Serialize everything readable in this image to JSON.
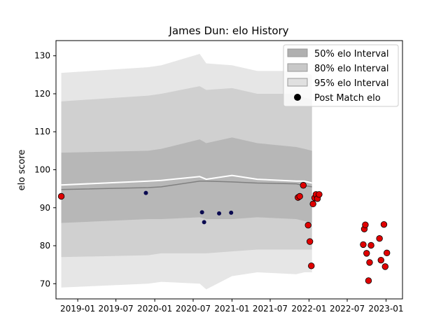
{
  "chart_data": {
    "type": "scatter",
    "title": "James Dun: elo History",
    "xlabel": "",
    "ylabel": "elo score",
    "xlim": [
      "2018-09-20",
      "2023-03-20"
    ],
    "ylim": [
      66,
      134
    ],
    "x_ticks": [
      "2019-01",
      "2019-07",
      "2020-01",
      "2020-07",
      "2021-01",
      "2021-07",
      "2022-01",
      "2022-07",
      "2023-01"
    ],
    "y_ticks": [
      70,
      80,
      90,
      100,
      110,
      120,
      130
    ],
    "grid": false,
    "legend_position": "top-right",
    "legend": [
      {
        "label": "50% elo Interval",
        "kind": "patch",
        "color": "#b0b0b0"
      },
      {
        "label": "80% elo Interval",
        "kind": "patch",
        "color": "#c8c8c8"
      },
      {
        "label": "95% elo Interval",
        "kind": "patch",
        "color": "#e0e0e0"
      },
      {
        "label": "Post Match elo",
        "kind": "marker",
        "color": "#000000"
      }
    ],
    "colors": {
      "band_50": "#b3b3b3",
      "band_80": "#cbcbcb",
      "band_95": "#e2e2e2",
      "mean_line": "#808080",
      "upper_line": "#ffffff",
      "navy_point": "#0a0a50",
      "red_point": "#e00000"
    },
    "intervals": {
      "x": [
        "2018-10-15",
        "2019-12-01",
        "2020-02-01",
        "2020-08-01",
        "2020-09-01",
        "2021-01-01",
        "2021-05-01",
        "2021-11-01",
        "2021-12-10",
        "2022-01-15"
      ],
      "p95": {
        "lower": [
          69,
          70,
          70.5,
          70,
          68.5,
          72,
          73,
          72.5,
          73,
          73
        ],
        "upper": [
          125.5,
          127,
          127.5,
          130.5,
          128,
          127.5,
          126,
          126,
          125.5,
          125
        ]
      },
      "p80": {
        "lower": [
          77,
          77.5,
          78,
          78,
          78,
          78.5,
          79,
          79,
          79,
          79
        ],
        "upper": [
          118,
          119.5,
          120,
          122,
          121,
          121.5,
          120,
          120,
          119,
          118.5
        ]
      },
      "p50": {
        "lower": [
          86,
          87,
          87,
          87.5,
          87,
          87,
          87.5,
          87,
          86.5,
          86
        ],
        "upper": [
          104.5,
          105,
          105.5,
          108,
          107,
          108.5,
          107,
          106,
          105.5,
          105
        ]
      },
      "mean": [
        94.8,
        95.3,
        95.5,
        97,
        97,
        96.8,
        96.5,
        96.3,
        95.8,
        95.5
      ],
      "upper_line": [
        96,
        97,
        97.2,
        98.2,
        97.5,
        98.5,
        97.5,
        97,
        97,
        96.5
      ]
    },
    "series": [
      {
        "name": "Post Match elo",
        "points": [
          {
            "x": "2018-10-15",
            "y": 93,
            "color": "red"
          },
          {
            "x": "2019-11-20",
            "y": 93.9,
            "color": "navy"
          },
          {
            "x": "2020-08-12",
            "y": 88.8,
            "color": "navy"
          },
          {
            "x": "2020-08-22",
            "y": 86.2,
            "color": "navy"
          },
          {
            "x": "2020-11-01",
            "y": 88.5,
            "color": "navy"
          },
          {
            "x": "2020-12-28",
            "y": 88.7,
            "color": "navy"
          },
          {
            "x": "2021-11-10",
            "y": 92.7,
            "color": "red"
          },
          {
            "x": "2021-11-18",
            "y": 93,
            "color": "red"
          },
          {
            "x": "2021-12-05",
            "y": 95.9,
            "color": "red"
          },
          {
            "x": "2021-12-28",
            "y": 85.4,
            "color": "red"
          },
          {
            "x": "2022-01-05",
            "y": 81.1,
            "color": "red"
          },
          {
            "x": "2022-01-12",
            "y": 74.7,
            "color": "red"
          },
          {
            "x": "2022-01-20",
            "y": 91,
            "color": "red"
          },
          {
            "x": "2022-01-28",
            "y": 92.6,
            "color": "red"
          },
          {
            "x": "2022-02-03",
            "y": 93.5,
            "color": "red"
          },
          {
            "x": "2022-02-10",
            "y": 92.4,
            "color": "red"
          },
          {
            "x": "2022-02-18",
            "y": 93.5,
            "color": "red"
          },
          {
            "x": "2022-09-15",
            "y": 80.3,
            "color": "red"
          },
          {
            "x": "2022-09-20",
            "y": 84.4,
            "color": "red"
          },
          {
            "x": "2022-09-25",
            "y": 85.5,
            "color": "red"
          },
          {
            "x": "2022-10-01",
            "y": 78,
            "color": "red"
          },
          {
            "x": "2022-10-10",
            "y": 70.8,
            "color": "red"
          },
          {
            "x": "2022-10-15",
            "y": 75.6,
            "color": "red"
          },
          {
            "x": "2022-10-22",
            "y": 80.1,
            "color": "red"
          },
          {
            "x": "2022-12-01",
            "y": 81.9,
            "color": "red"
          },
          {
            "x": "2022-12-08",
            "y": 76.2,
            "color": "red"
          },
          {
            "x": "2022-12-22",
            "y": 85.6,
            "color": "red"
          },
          {
            "x": "2022-12-28",
            "y": 74.5,
            "color": "red"
          },
          {
            "x": "2023-01-05",
            "y": 78.1,
            "color": "red"
          }
        ]
      }
    ]
  }
}
